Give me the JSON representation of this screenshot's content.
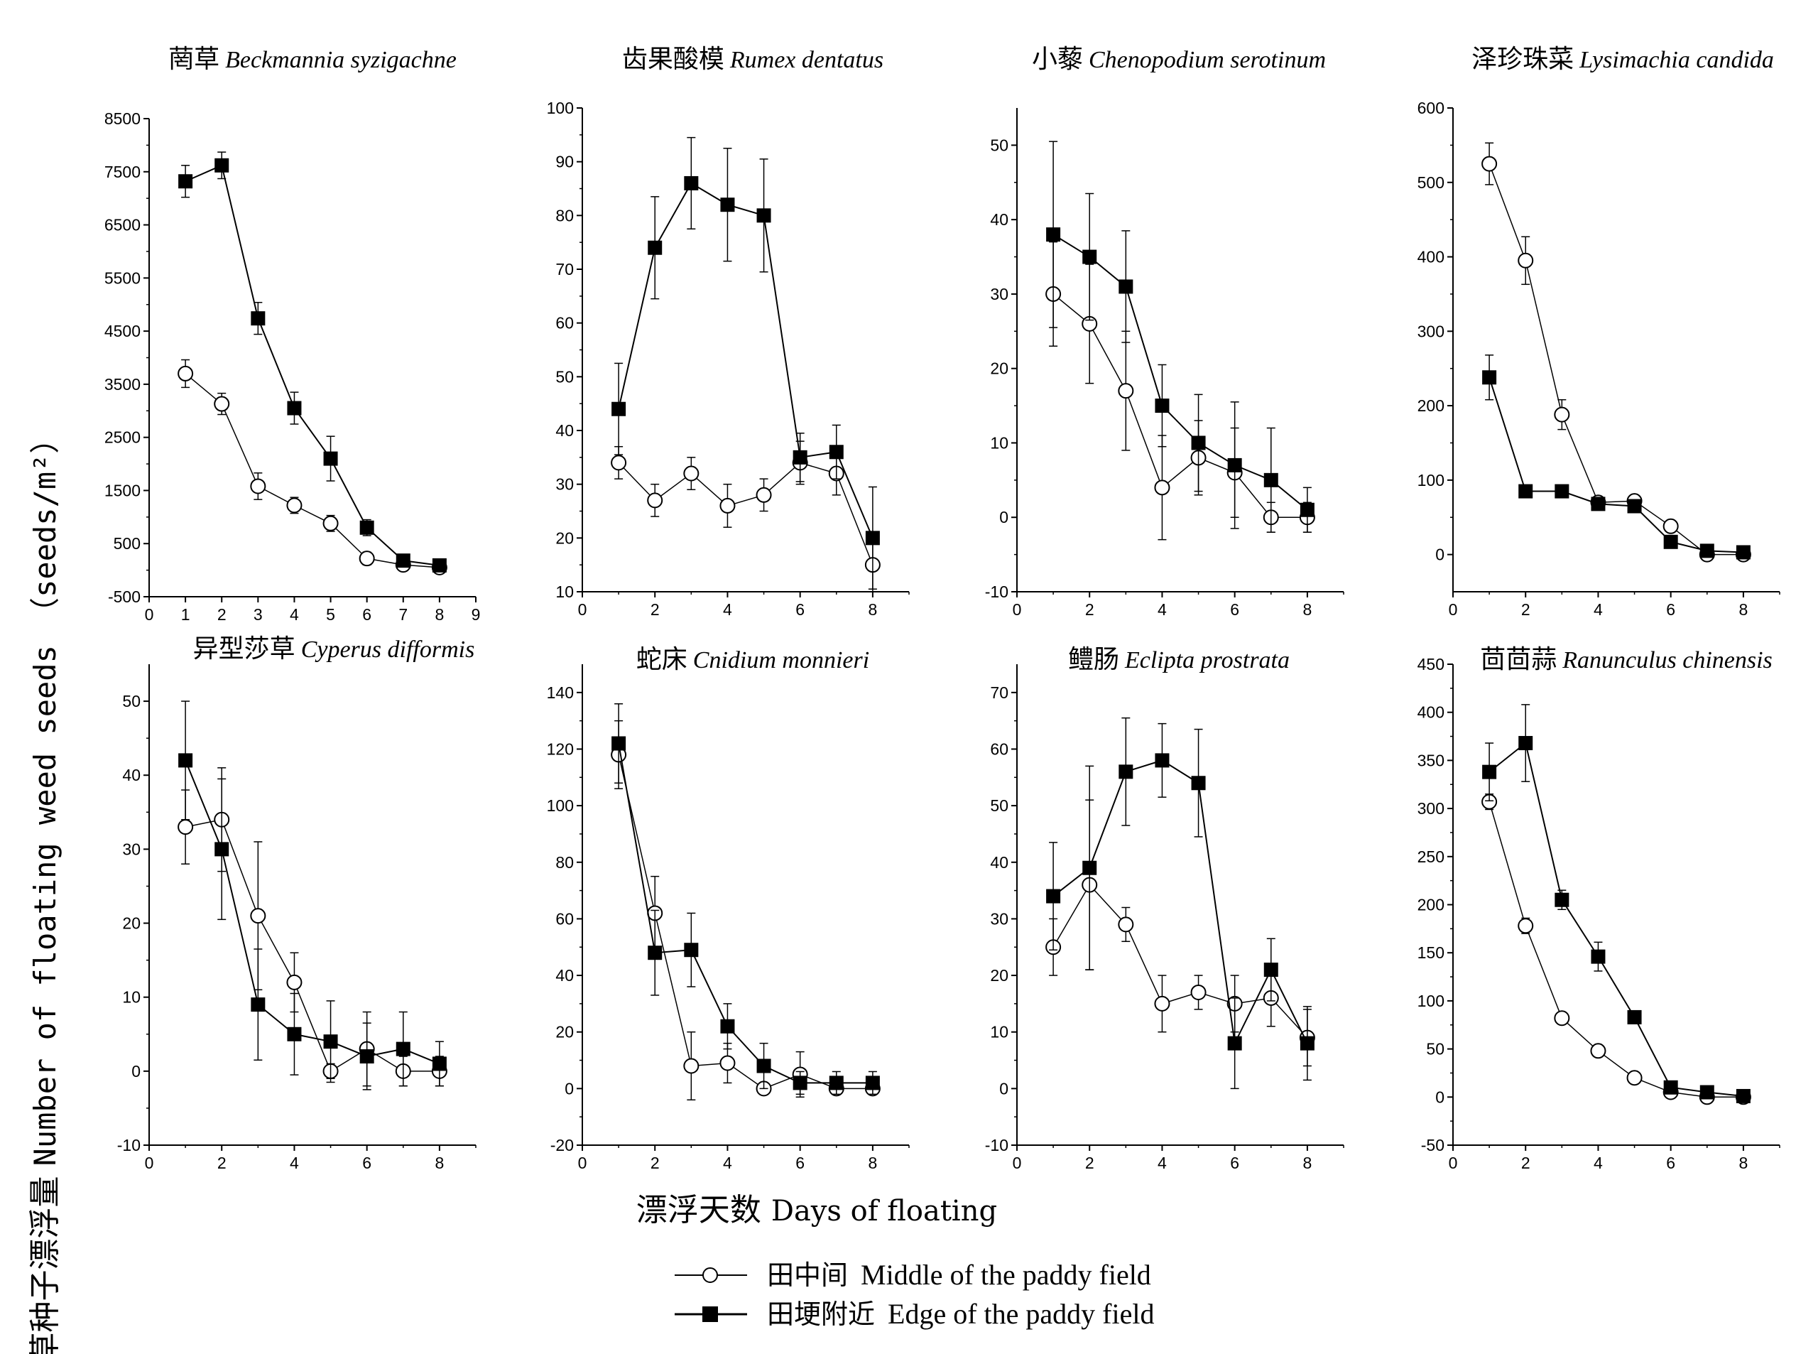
{
  "figure": {
    "ylabel_zh": "杂草种子漂浮量",
    "ylabel_en": "Number of floating weed seeds （seeds/m²）",
    "xlabel_zh": "漂浮天数",
    "xlabel_en": "Days of floating",
    "legend": [
      {
        "zh": "田中间",
        "en": "Middle of the paddy field",
        "marker": "open-circle"
      },
      {
        "zh": "田埂附近",
        "en": "Edge of the paddy field",
        "marker": "filled-square"
      }
    ]
  },
  "chart_data": [
    {
      "type": "line",
      "title_zh": "菵草",
      "title_sci": "Beckmannia syzigachne",
      "xlim": [
        0,
        9
      ],
      "xticks": [
        0,
        1,
        2,
        3,
        4,
        5,
        6,
        7,
        8,
        9
      ],
      "ylim": [
        -500,
        8500
      ],
      "yticks": [
        -500,
        500,
        1500,
        2500,
        3500,
        4500,
        5500,
        6500,
        7500,
        8500
      ],
      "x": [
        1,
        2,
        3,
        4,
        5,
        6,
        7,
        8
      ],
      "series": [
        {
          "name": "田中间 Middle of the paddy field",
          "marker": "open-circle",
          "values": [
            3700,
            3130,
            1580,
            1220,
            880,
            220,
            100,
            50
          ],
          "errors": [
            260,
            200,
            250,
            150,
            150,
            120,
            80,
            60
          ]
        },
        {
          "name": "田埂附近 Edge of the paddy field",
          "marker": "filled-square",
          "values": [
            7320,
            7620,
            4740,
            3050,
            2100,
            800,
            180,
            90
          ],
          "errors": [
            300,
            250,
            300,
            300,
            420,
            150,
            80,
            60
          ]
        }
      ]
    },
    {
      "type": "line",
      "title_zh": "齿果酸模",
      "title_sci": "Rumex dentatus",
      "xlim": [
        0,
        9
      ],
      "xticks": [
        0,
        2,
        4,
        6,
        8
      ],
      "ylim": [
        10,
        100
      ],
      "yticks": [
        10,
        20,
        30,
        40,
        50,
        60,
        70,
        80,
        90,
        100
      ],
      "x": [
        1,
        2,
        3,
        4,
        5,
        6,
        7,
        8
      ],
      "series": [
        {
          "name": "田中间 Middle of the paddy field",
          "marker": "open-circle",
          "values": [
            34,
            27,
            32,
            26,
            28,
            34,
            32,
            15
          ],
          "errors": [
            3,
            3,
            3,
            4,
            3,
            4,
            4,
            5
          ]
        },
        {
          "name": "田埂附近 Edge of the paddy field",
          "marker": "filled-square",
          "values": [
            44,
            74,
            86,
            82,
            80,
            35,
            36,
            20
          ],
          "errors": [
            8.5,
            9.5,
            8.5,
            10.5,
            10.5,
            4.5,
            5,
            9.5
          ]
        }
      ]
    },
    {
      "type": "line",
      "title_zh": "小藜",
      "title_sci": "Chenopodium serotinum",
      "xlim": [
        0,
        9
      ],
      "xticks": [
        0,
        2,
        4,
        6,
        8
      ],
      "ylim": [
        -10,
        55
      ],
      "yticks": [
        -10,
        0,
        10,
        20,
        30,
        40,
        50
      ],
      "x": [
        1,
        2,
        3,
        4,
        5,
        6,
        7,
        8
      ],
      "series": [
        {
          "name": "田中间 Middle of the paddy field",
          "marker": "open-circle",
          "values": [
            30,
            26,
            17,
            4,
            8,
            6,
            0,
            0
          ],
          "errors": [
            7,
            8,
            8,
            7,
            5,
            6,
            2,
            2
          ]
        },
        {
          "name": "田埂附近 Edge of the paddy field",
          "marker": "filled-square",
          "values": [
            38,
            35,
            31,
            15,
            10,
            7,
            5,
            1
          ],
          "errors": [
            12.5,
            8.5,
            7.5,
            5.5,
            6.5,
            8.5,
            7,
            3
          ]
        }
      ]
    },
    {
      "type": "line",
      "title_zh": "泽珍珠菜",
      "title_sci": "Lysimachia candida",
      "xlim": [
        0,
        9
      ],
      "xticks": [
        0,
        2,
        4,
        6,
        8
      ],
      "ylim": [
        -50,
        600
      ],
      "yticks": [
        0,
        100,
        200,
        300,
        400,
        500,
        600
      ],
      "x": [
        1,
        2,
        3,
        4,
        5,
        6,
        7,
        8
      ],
      "series": [
        {
          "name": "田中间 Middle of the paddy field",
          "marker": "open-circle",
          "values": [
            525,
            395,
            188,
            70,
            72,
            38,
            0,
            0
          ],
          "errors": [
            28,
            32,
            20,
            8,
            6,
            5,
            4,
            3
          ]
        },
        {
          "name": "田埂附近 Edge of the paddy field",
          "marker": "filled-square",
          "values": [
            238,
            85,
            85,
            68,
            65,
            17,
            5,
            3
          ],
          "errors": [
            30,
            5,
            6,
            6,
            5,
            4,
            3,
            3
          ]
        }
      ]
    },
    {
      "type": "line",
      "title_zh": "异型莎草",
      "title_sci": "Cyperus difformis",
      "xlim": [
        0,
        9
      ],
      "xticks": [
        0,
        2,
        4,
        6,
        8
      ],
      "ylim": [
        -10,
        55
      ],
      "yticks": [
        -10,
        0,
        10,
        20,
        30,
        40,
        50
      ],
      "x": [
        1,
        2,
        3,
        4,
        5,
        6,
        7,
        8
      ],
      "series": [
        {
          "name": "田中间 Middle of the paddy field",
          "marker": "open-circle",
          "values": [
            33,
            34,
            21,
            12,
            0,
            3,
            0,
            0
          ],
          "errors": [
            5,
            7,
            10,
            4,
            1,
            5,
            2,
            2
          ]
        },
        {
          "name": "田埂附近 Edge of the paddy field",
          "marker": "filled-square",
          "values": [
            42,
            30,
            9,
            5,
            4,
            2,
            3,
            1
          ],
          "errors": [
            8,
            9.5,
            7.5,
            5.5,
            5.5,
            4.5,
            5,
            3
          ]
        }
      ]
    },
    {
      "type": "line",
      "title_zh": "蛇床",
      "title_sci": "Cnidium monnieri",
      "xlim": [
        0,
        9
      ],
      "xticks": [
        0,
        2,
        4,
        6,
        8
      ],
      "ylim": [
        -20,
        150
      ],
      "yticks": [
        -20,
        0,
        20,
        40,
        60,
        80,
        100,
        120,
        140
      ],
      "x": [
        1,
        2,
        3,
        4,
        5,
        6,
        7,
        8
      ],
      "series": [
        {
          "name": "田中间 Middle of the paddy field",
          "marker": "open-circle",
          "values": [
            118,
            62,
            8,
            9,
            0,
            5,
            0,
            0
          ],
          "errors": [
            12,
            13,
            12,
            7,
            1,
            8,
            2,
            2
          ]
        },
        {
          "name": "田埂附近 Edge of the paddy field",
          "marker": "filled-square",
          "values": [
            122,
            48,
            49,
            22,
            8,
            2,
            2,
            2
          ],
          "errors": [
            14,
            15,
            13,
            8,
            8,
            4,
            4,
            4
          ]
        }
      ]
    },
    {
      "type": "line",
      "title_zh": "鳢肠",
      "title_sci": "Eclipta prostrata",
      "xlim": [
        0,
        9
      ],
      "xticks": [
        0,
        2,
        4,
        6,
        8
      ],
      "ylim": [
        -10,
        75
      ],
      "yticks": [
        -10,
        0,
        10,
        20,
        30,
        40,
        50,
        60,
        70
      ],
      "x": [
        1,
        2,
        3,
        4,
        5,
        6,
        7,
        8
      ],
      "series": [
        {
          "name": "田中间 Middle of the paddy field",
          "marker": "open-circle",
          "values": [
            25,
            36,
            29,
            15,
            17,
            15,
            16,
            9
          ],
          "errors": [
            5,
            15,
            3,
            5,
            3,
            5,
            5,
            5
          ]
        },
        {
          "name": "田埂附近 Edge of the paddy field",
          "marker": "filled-square",
          "values": [
            34,
            39,
            56,
            58,
            54,
            8,
            21,
            8
          ],
          "errors": [
            9.5,
            18,
            9.5,
            6.5,
            9.5,
            8,
            5.5,
            6.5
          ]
        }
      ]
    },
    {
      "type": "line",
      "title_zh": "茴茴蒜",
      "title_sci": "Ranunculus chinensis",
      "xlim": [
        0,
        9
      ],
      "xticks": [
        0,
        2,
        4,
        6,
        8
      ],
      "ylim": [
        -50,
        450
      ],
      "yticks": [
        -50,
        0,
        50,
        100,
        150,
        200,
        250,
        300,
        350,
        400,
        450
      ],
      "x": [
        1,
        2,
        3,
        4,
        5,
        6,
        7,
        8
      ],
      "series": [
        {
          "name": "田中间 Middle of the paddy field",
          "marker": "open-circle",
          "values": [
            307,
            178,
            82,
            48,
            20,
            5,
            0,
            0
          ],
          "errors": [
            8,
            8,
            5,
            5,
            4,
            3,
            3,
            3
          ]
        },
        {
          "name": "田埂附近 Edge of the paddy field",
          "marker": "filled-square",
          "values": [
            338,
            368,
            205,
            146,
            83,
            10,
            5,
            1
          ],
          "errors": [
            30,
            40,
            10,
            15,
            6,
            5,
            4,
            3
          ]
        }
      ]
    }
  ]
}
